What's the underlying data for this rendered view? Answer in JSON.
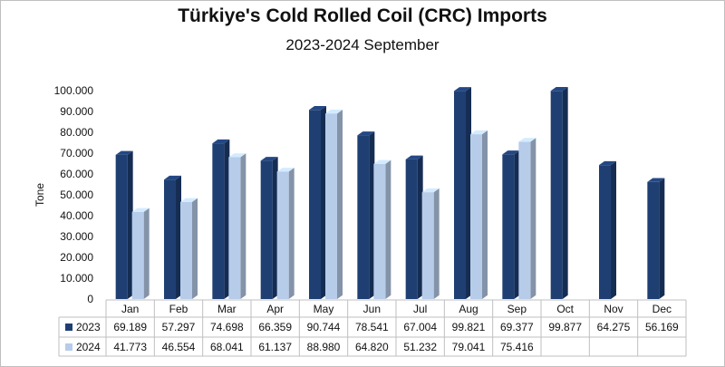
{
  "chart_data": {
    "type": "bar",
    "title": "Türkiye's Cold Rolled Coil (CRC) Imports",
    "subtitle": "2023-2024 September",
    "ylabel": "Tone",
    "ylim": [
      0,
      100000
    ],
    "yticks": [
      "0",
      "10.000",
      "20.000",
      "30.000",
      "40.000",
      "50.000",
      "60.000",
      "70.000",
      "80.000",
      "90.000",
      "100.000"
    ],
    "categories": [
      "Jan",
      "Feb",
      "Mar",
      "Apr",
      "May",
      "Jun",
      "Jul",
      "Aug",
      "Sep",
      "Oct",
      "Nov",
      "Dec"
    ],
    "series": [
      {
        "name": "2023",
        "color": "#1f3f73",
        "values": [
          69189,
          57297,
          74698,
          66359,
          90744,
          78541,
          67004,
          99821,
          69377,
          99877,
          64275,
          56169
        ],
        "labels": [
          "69.189",
          "57.297",
          "74.698",
          "66.359",
          "90.744",
          "78.541",
          "67.004",
          "99.821",
          "69.377",
          "99.877",
          "64.275",
          "56.169"
        ]
      },
      {
        "name": "2024",
        "color": "#b7cce9",
        "values": [
          41773,
          46554,
          68041,
          61137,
          88980,
          64820,
          51232,
          79041,
          75416,
          null,
          null,
          null
        ],
        "labels": [
          "41.773",
          "46.554",
          "68.041",
          "61.137",
          "88.980",
          "64.820",
          "51.232",
          "79.041",
          "75.416",
          "",
          "",
          ""
        ]
      }
    ],
    "grid": false,
    "legend": "data-table"
  }
}
